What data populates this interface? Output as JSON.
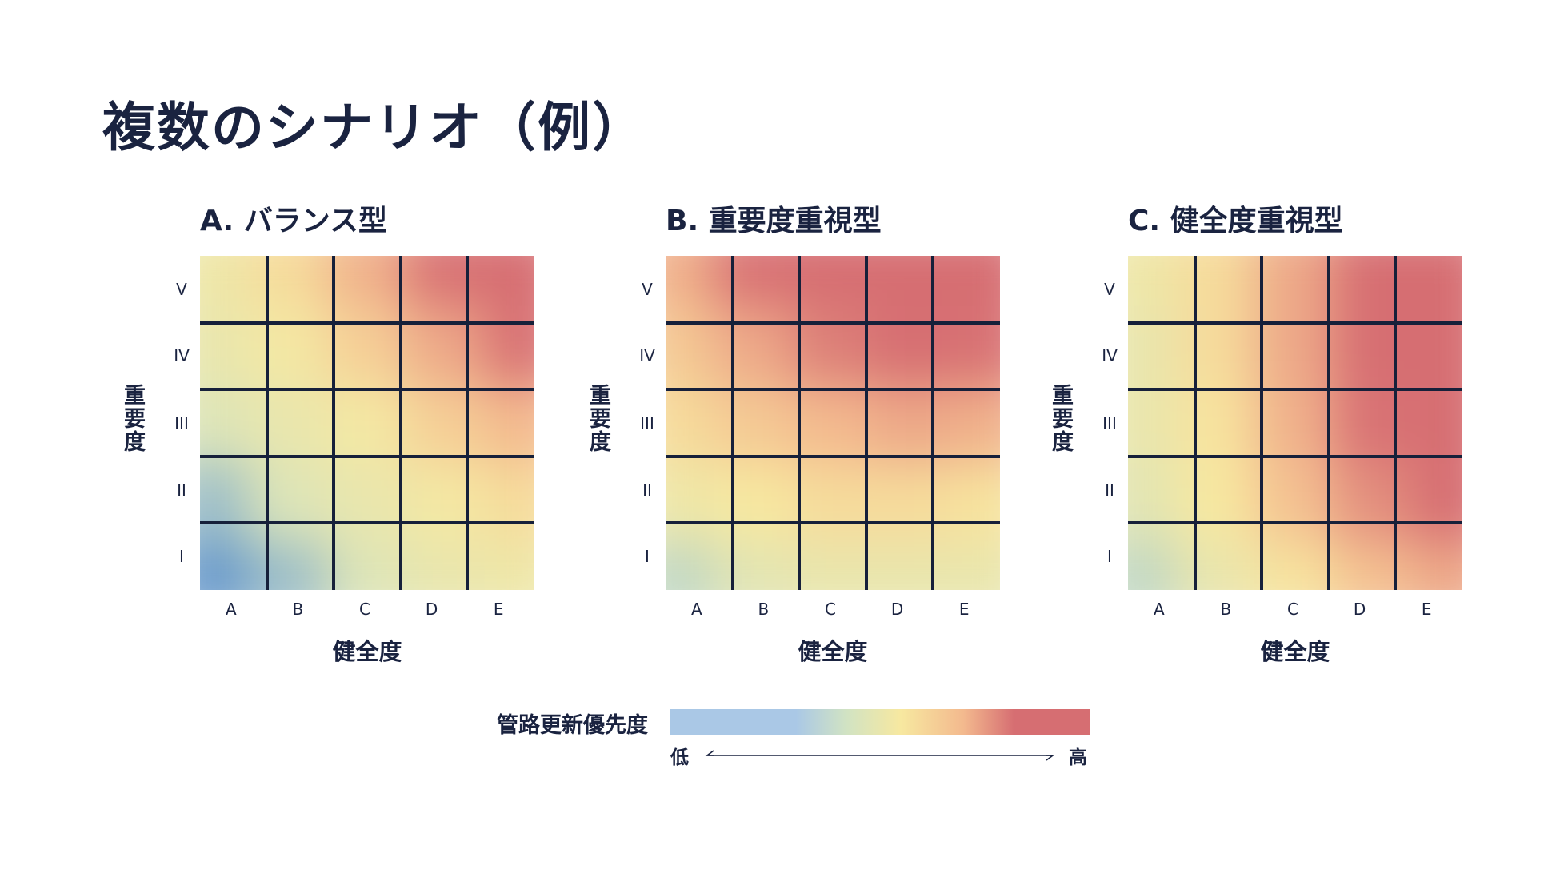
{
  "title": "複数のシナリオ（例）",
  "colors": {
    "low": "#6b9bcc",
    "mid_low": "#d1e3c3",
    "mid": "#f7e8a0",
    "mid_high": "#f3b98e",
    "high": "#d66e72",
    "grid_line": "#16203a"
  },
  "chart_data": [
    {
      "type": "heatmap",
      "title": "A. バランス型",
      "xlabel": "健全度",
      "ylabel": "重要度",
      "x_categories": [
        "A",
        "B",
        "C",
        "D",
        "E"
      ],
      "y_categories": [
        "I",
        "II",
        "III",
        "IV",
        "V"
      ],
      "values": [
        [
          0.0,
          0.18,
          0.35,
          0.42,
          0.45
        ],
        [
          0.18,
          0.35,
          0.42,
          0.48,
          0.55
        ],
        [
          0.35,
          0.42,
          0.48,
          0.6,
          0.68
        ],
        [
          0.42,
          0.48,
          0.6,
          0.72,
          0.85
        ],
        [
          0.45,
          0.55,
          0.7,
          0.85,
          1.0
        ]
      ]
    },
    {
      "type": "heatmap",
      "title": "B. 重要度重視型",
      "xlabel": "健全度",
      "ylabel": "重要度",
      "x_categories": [
        "A",
        "B",
        "C",
        "D",
        "E"
      ],
      "y_categories": [
        "I",
        "II",
        "III",
        "IV",
        "V"
      ],
      "values": [
        [
          0.25,
          0.38,
          0.42,
          0.42,
          0.42
        ],
        [
          0.45,
          0.5,
          0.55,
          0.55,
          0.52
        ],
        [
          0.55,
          0.62,
          0.68,
          0.72,
          0.7
        ],
        [
          0.62,
          0.72,
          0.82,
          0.9,
          0.85
        ],
        [
          0.7,
          0.85,
          0.98,
          1.0,
          1.0
        ]
      ]
    },
    {
      "type": "heatmap",
      "title": "C. 健全度重視型",
      "xlabel": "健全度",
      "ylabel": "重要度",
      "x_categories": [
        "A",
        "B",
        "C",
        "D",
        "E"
      ],
      "y_categories": [
        "I",
        "II",
        "III",
        "IV",
        "V"
      ],
      "values": [
        [
          0.25,
          0.42,
          0.52,
          0.65,
          0.72
        ],
        [
          0.38,
          0.5,
          0.65,
          0.78,
          0.9
        ],
        [
          0.42,
          0.52,
          0.7,
          0.85,
          1.0
        ],
        [
          0.42,
          0.55,
          0.72,
          0.9,
          1.0
        ],
        [
          0.45,
          0.55,
          0.72,
          0.9,
          1.0
        ]
      ]
    }
  ],
  "legend": {
    "label": "管路更新優先度",
    "low": "低",
    "high": "高"
  }
}
